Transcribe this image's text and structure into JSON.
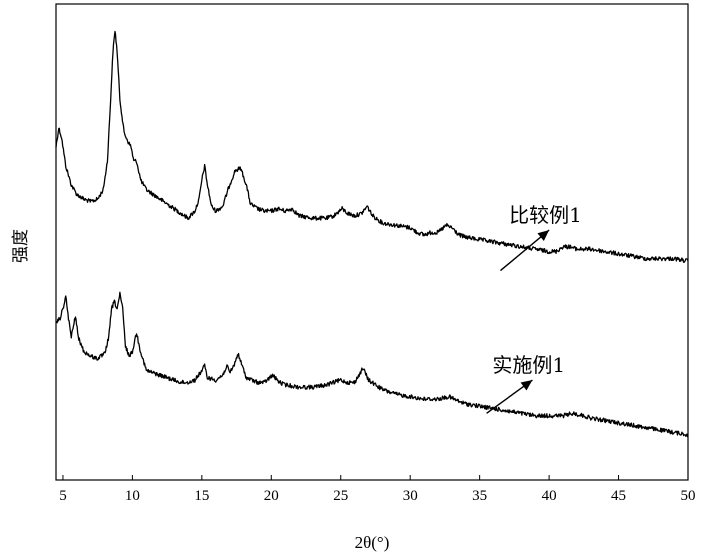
{
  "chart_data": {
    "type": "line",
    "title": "",
    "xlabel": "2θ(°)",
    "ylabel": "强度",
    "xlim": [
      4.5,
      50
    ],
    "ylim": [
      0,
      1
    ],
    "y_ticks_shown": false,
    "x_ticks": [
      5,
      10,
      15,
      20,
      25,
      30,
      35,
      40,
      45,
      50
    ],
    "grid": false,
    "legend": "none",
    "series": [
      {
        "name": "比较例1",
        "label_arrow_from": [
          36.5,
          0.44
        ],
        "label_arrow_to": [
          40.0,
          0.525
        ],
        "points": [
          [
            4.5,
            0.7
          ],
          [
            4.7,
            0.74
          ],
          [
            4.9,
            0.72
          ],
          [
            5.2,
            0.66
          ],
          [
            5.6,
            0.62
          ],
          [
            6.0,
            0.6
          ],
          [
            6.5,
            0.59
          ],
          [
            7.0,
            0.585
          ],
          [
            7.5,
            0.59
          ],
          [
            7.9,
            0.61
          ],
          [
            8.2,
            0.67
          ],
          [
            8.4,
            0.78
          ],
          [
            8.6,
            0.9
          ],
          [
            8.75,
            0.945
          ],
          [
            8.9,
            0.9
          ],
          [
            9.1,
            0.8
          ],
          [
            9.4,
            0.73
          ],
          [
            9.7,
            0.71
          ],
          [
            9.9,
            0.7
          ],
          [
            10.1,
            0.67
          ],
          [
            10.3,
            0.67
          ],
          [
            10.6,
            0.63
          ],
          [
            11.0,
            0.61
          ],
          [
            11.5,
            0.6
          ],
          [
            12.0,
            0.59
          ],
          [
            12.5,
            0.58
          ],
          [
            13.0,
            0.57
          ],
          [
            13.5,
            0.56
          ],
          [
            14.0,
            0.55
          ],
          [
            14.5,
            0.565
          ],
          [
            14.8,
            0.59
          ],
          [
            15.0,
            0.63
          ],
          [
            15.2,
            0.66
          ],
          [
            15.4,
            0.62
          ],
          [
            15.7,
            0.575
          ],
          [
            16.0,
            0.565
          ],
          [
            16.5,
            0.575
          ],
          [
            17.0,
            0.62
          ],
          [
            17.4,
            0.65
          ],
          [
            17.8,
            0.655
          ],
          [
            18.2,
            0.62
          ],
          [
            18.5,
            0.58
          ],
          [
            19.0,
            0.57
          ],
          [
            19.5,
            0.565
          ],
          [
            20.0,
            0.565
          ],
          [
            20.5,
            0.57
          ],
          [
            21.0,
            0.565
          ],
          [
            21.5,
            0.57
          ],
          [
            22.0,
            0.555
          ],
          [
            23.0,
            0.55
          ],
          [
            24.0,
            0.55
          ],
          [
            24.5,
            0.555
          ],
          [
            25.1,
            0.57
          ],
          [
            25.5,
            0.56
          ],
          [
            26.0,
            0.555
          ],
          [
            26.5,
            0.56
          ],
          [
            26.9,
            0.575
          ],
          [
            27.3,
            0.555
          ],
          [
            28.0,
            0.54
          ],
          [
            29.0,
            0.535
          ],
          [
            30.0,
            0.53
          ],
          [
            30.5,
            0.52
          ],
          [
            31.0,
            0.515
          ],
          [
            31.5,
            0.52
          ],
          [
            32.0,
            0.52
          ],
          [
            32.6,
            0.535
          ],
          [
            33.0,
            0.53
          ],
          [
            33.5,
            0.515
          ],
          [
            34.0,
            0.51
          ],
          [
            35.0,
            0.505
          ],
          [
            36.0,
            0.5
          ],
          [
            37.0,
            0.495
          ],
          [
            38.0,
            0.49
          ],
          [
            39.0,
            0.485
          ],
          [
            40.0,
            0.48
          ],
          [
            40.5,
            0.48
          ],
          [
            41.0,
            0.49
          ],
          [
            41.5,
            0.49
          ],
          [
            42.0,
            0.485
          ],
          [
            43.0,
            0.485
          ],
          [
            44.0,
            0.48
          ],
          [
            45.0,
            0.475
          ],
          [
            46.0,
            0.47
          ],
          [
            47.0,
            0.465
          ],
          [
            48.0,
            0.465
          ],
          [
            49.0,
            0.465
          ],
          [
            50.0,
            0.46
          ]
        ]
      },
      {
        "name": "实施例1",
        "label_arrow_from": [
          35.5,
          0.14
        ],
        "label_arrow_to": [
          38.8,
          0.21
        ],
        "points": [
          [
            4.5,
            0.33
          ],
          [
            4.8,
            0.34
          ],
          [
            5.0,
            0.36
          ],
          [
            5.2,
            0.385
          ],
          [
            5.4,
            0.34
          ],
          [
            5.6,
            0.3
          ],
          [
            5.8,
            0.33
          ],
          [
            5.9,
            0.345
          ],
          [
            6.1,
            0.3
          ],
          [
            6.5,
            0.27
          ],
          [
            7.0,
            0.26
          ],
          [
            7.5,
            0.255
          ],
          [
            8.0,
            0.265
          ],
          [
            8.3,
            0.3
          ],
          [
            8.5,
            0.36
          ],
          [
            8.7,
            0.375
          ],
          [
            8.9,
            0.36
          ],
          [
            9.1,
            0.39
          ],
          [
            9.3,
            0.36
          ],
          [
            9.5,
            0.28
          ],
          [
            9.8,
            0.26
          ],
          [
            10.0,
            0.27
          ],
          [
            10.3,
            0.31
          ],
          [
            10.5,
            0.28
          ],
          [
            10.8,
            0.25
          ],
          [
            11.0,
            0.23
          ],
          [
            11.5,
            0.225
          ],
          [
            12.0,
            0.22
          ],
          [
            12.5,
            0.215
          ],
          [
            13.0,
            0.21
          ],
          [
            13.5,
            0.205
          ],
          [
            14.0,
            0.205
          ],
          [
            14.5,
            0.21
          ],
          [
            15.0,
            0.23
          ],
          [
            15.2,
            0.24
          ],
          [
            15.4,
            0.215
          ],
          [
            16.0,
            0.21
          ],
          [
            16.5,
            0.22
          ],
          [
            16.8,
            0.24
          ],
          [
            17.0,
            0.225
          ],
          [
            17.3,
            0.24
          ],
          [
            17.6,
            0.265
          ],
          [
            17.9,
            0.24
          ],
          [
            18.2,
            0.215
          ],
          [
            19.0,
            0.205
          ],
          [
            19.5,
            0.205
          ],
          [
            20.1,
            0.22
          ],
          [
            20.6,
            0.205
          ],
          [
            21.0,
            0.2
          ],
          [
            22.0,
            0.195
          ],
          [
            23.0,
            0.195
          ],
          [
            24.0,
            0.2
          ],
          [
            25.0,
            0.21
          ],
          [
            25.5,
            0.205
          ],
          [
            26.0,
            0.205
          ],
          [
            26.6,
            0.235
          ],
          [
            27.0,
            0.21
          ],
          [
            28.0,
            0.19
          ],
          [
            29.0,
            0.18
          ],
          [
            30.0,
            0.175
          ],
          [
            31.0,
            0.17
          ],
          [
            32.0,
            0.17
          ],
          [
            32.8,
            0.175
          ],
          [
            33.5,
            0.165
          ],
          [
            34.0,
            0.16
          ],
          [
            35.0,
            0.155
          ],
          [
            36.0,
            0.15
          ],
          [
            37.0,
            0.145
          ],
          [
            38.0,
            0.14
          ],
          [
            39.0,
            0.135
          ],
          [
            40.0,
            0.135
          ],
          [
            41.0,
            0.135
          ],
          [
            41.7,
            0.14
          ],
          [
            42.5,
            0.135
          ],
          [
            43.0,
            0.13
          ],
          [
            44.0,
            0.125
          ],
          [
            45.0,
            0.12
          ],
          [
            46.0,
            0.115
          ],
          [
            47.0,
            0.11
          ],
          [
            48.0,
            0.105
          ],
          [
            49.0,
            0.1
          ],
          [
            50.0,
            0.095
          ]
        ]
      }
    ]
  }
}
